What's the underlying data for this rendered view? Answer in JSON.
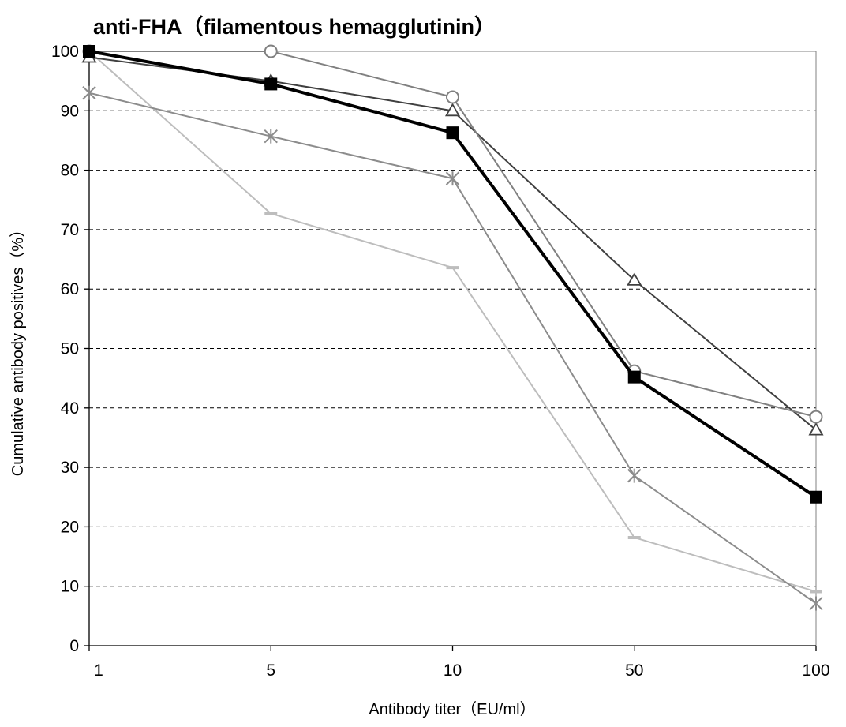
{
  "chart_data": {
    "type": "line",
    "title": "anti-FHA（filamentous hemagglutinin）",
    "xlabel": "Antibody titer（EU/ml）",
    "ylabel": "Cumulative antibody positives（%）",
    "x": [
      "1",
      "5",
      "10",
      "50",
      "100"
    ],
    "ylim": [
      0,
      100
    ],
    "yticks": [
      "0",
      "10",
      "20",
      "30",
      "40",
      "50",
      "60",
      "70",
      "80",
      "90",
      "100"
    ],
    "grid": "horizontal dashed",
    "legend": "none",
    "series": [
      {
        "values": [
          100,
          94.5,
          86.3,
          45.2,
          25.0
        ],
        "color": "#000000",
        "marker": "square"
      },
      {
        "values": [
          100,
          100,
          92.3,
          46.2,
          38.5
        ],
        "color": "#808080",
        "marker": "circle"
      },
      {
        "values": [
          99.0,
          95.0,
          90.0,
          61.5,
          36.3
        ],
        "color": "#404040",
        "marker": "triangle"
      },
      {
        "values": [
          93.0,
          85.7,
          78.6,
          28.6,
          7.1
        ],
        "color": "#8c8c8c",
        "marker": "asterisk"
      },
      {
        "values": [
          100,
          72.7,
          63.6,
          18.2,
          9.1
        ],
        "color": "#bdbdbd",
        "marker": "dash"
      }
    ]
  }
}
